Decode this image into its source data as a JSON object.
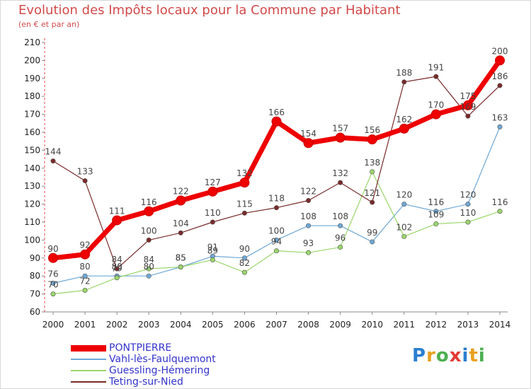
{
  "header": {
    "title": "Evolution des Impôts locaux pour la Commune par Habitant",
    "subtitle": "(en € et par an)"
  },
  "logo": {
    "text": "Proxiti",
    "colors": [
      "#2a7fd0",
      "#e8a020",
      "#4caf50",
      "#e53935"
    ]
  },
  "chart_data": {
    "type": "line",
    "title": "Evolution des Impôts locaux pour la Commune par Habitant",
    "subtitle": "(en € et par an)",
    "xlabel": "",
    "ylabel": "",
    "x": [
      "2000",
      "2001",
      "2002",
      "2003",
      "2004",
      "2005",
      "2006",
      "2007",
      "2008",
      "2009",
      "2010",
      "2011",
      "2012",
      "2013",
      "2014"
    ],
    "ylim": [
      60,
      210
    ],
    "yticks": [
      60,
      70,
      80,
      90,
      100,
      110,
      120,
      130,
      140,
      150,
      160,
      170,
      180,
      190,
      200,
      210
    ],
    "grid": false,
    "legend": "bottom-left",
    "series": [
      {
        "name": "PONTPIERRE",
        "color": "#ee0000",
        "values": [
          90,
          92,
          111,
          116,
          122,
          127,
          132,
          166,
          154,
          157,
          156,
          162,
          170,
          175,
          200
        ]
      },
      {
        "name": "Vahl-lès-Faulquemont",
        "color": "#6fa8d6",
        "values": [
          76,
          80,
          80,
          80,
          85,
          91,
          90,
          100,
          108,
          108,
          99,
          120,
          116,
          120,
          163
        ]
      },
      {
        "name": "Guessling-Hémering",
        "color": "#9ad66a",
        "values": [
          70,
          72,
          79,
          84,
          85,
          89,
          82,
          94,
          93,
          96,
          138,
          102,
          109,
          110,
          116
        ]
      },
      {
        "name": "Teting-sur-Nied",
        "color": "#7a2a2a",
        "values": [
          144,
          133,
          84,
          100,
          104,
          110,
          115,
          118,
          122,
          132,
          121,
          188,
          191,
          169,
          186
        ]
      }
    ]
  }
}
